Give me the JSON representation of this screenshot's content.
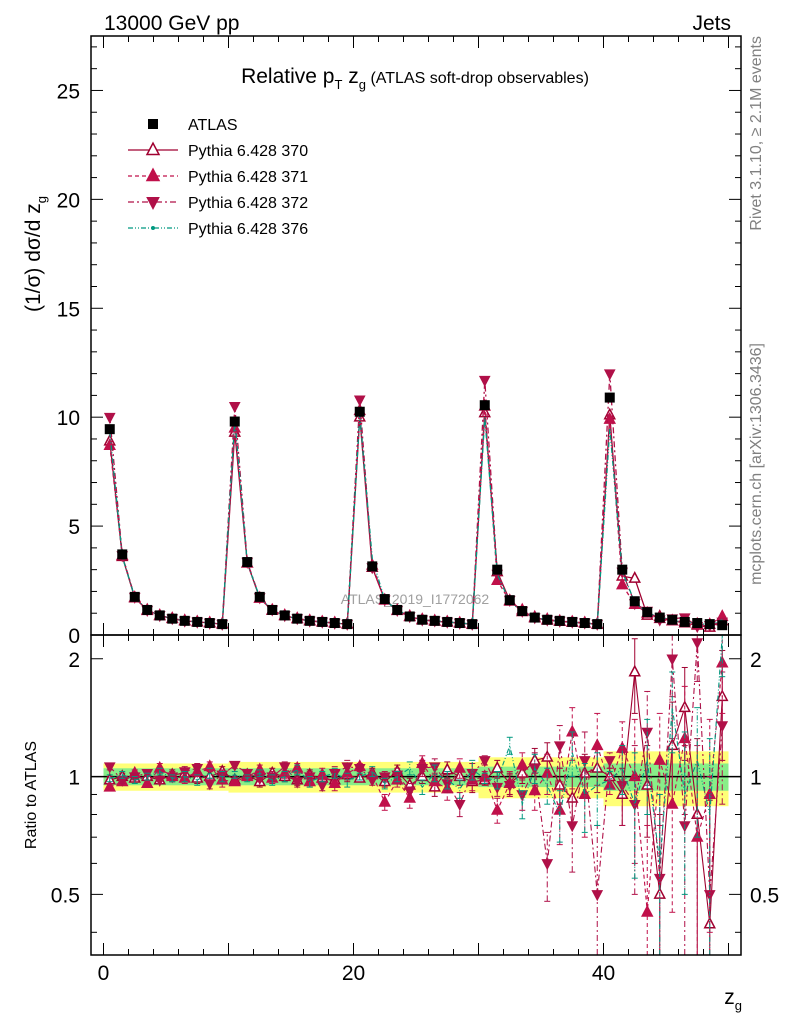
{
  "header": {
    "left": "13000 GeV pp",
    "right": "Jets"
  },
  "side_labels": {
    "rivet": "Rivet 3.1.10, ≥ 2.1M events",
    "mcplots": "mcplots.cern.ch [arXiv:1306.3436]"
  },
  "chart_data": {
    "type": "scatter",
    "title_parts": [
      "Relative p",
      "T",
      " z",
      "g",
      " (ATLAS soft-drop observables)"
    ],
    "watermark": "ATLAS_2019_I1772062",
    "xlabel": "z",
    "xlabel_sub": "g",
    "ylabel": "(1/σ) dσ/d z",
    "ylabel_sub": "g",
    "ratio_ylabel": "Ratio to ATLAS",
    "xlim": [
      -1,
      51
    ],
    "ylim": [
      0,
      27.5
    ],
    "ratio_ylim": [
      0.35,
      2.3
    ],
    "x_ticks": [
      0,
      20,
      40
    ],
    "y_ticks": [
      0,
      5,
      10,
      15,
      20,
      25
    ],
    "ratio_ticks": [
      0.5,
      1,
      2
    ],
    "legend_position": "top-left",
    "x": [
      0.5,
      1.5,
      2.5,
      3.5,
      4.5,
      5.5,
      6.5,
      7.5,
      8.5,
      9.5,
      10.5,
      11.5,
      12.5,
      13.5,
      14.5,
      15.5,
      16.5,
      17.5,
      18.5,
      19.5,
      20.5,
      21.5,
      22.5,
      23.5,
      24.5,
      25.5,
      26.5,
      27.5,
      28.5,
      29.5,
      30.5,
      31.5,
      32.5,
      33.5,
      34.5,
      35.5,
      36.5,
      37.5,
      38.5,
      39.5,
      40.5,
      41.5,
      42.5,
      43.5,
      44.5,
      45.5,
      46.5,
      47.5,
      48.5,
      49.5
    ],
    "reference": {
      "name": "ATLAS",
      "values": [
        9.45,
        3.7,
        1.75,
        1.15,
        0.9,
        0.75,
        0.65,
        0.6,
        0.55,
        0.5,
        9.8,
        3.35,
        1.75,
        1.15,
        0.9,
        0.75,
        0.65,
        0.6,
        0.55,
        0.5,
        10.25,
        3.15,
        1.65,
        1.15,
        0.85,
        0.7,
        0.65,
        0.6,
        0.55,
        0.5,
        10.55,
        3.0,
        1.6,
        1.1,
        0.8,
        0.7,
        0.65,
        0.6,
        0.55,
        0.5,
        10.9,
        3.0,
        1.55,
        1.05,
        0.8,
        0.7,
        0.6,
        0.55,
        0.5,
        0.45
      ],
      "band_inner": [
        0.05,
        0.05,
        0.05,
        0.05,
        0.05,
        0.05,
        0.05,
        0.05,
        0.05,
        0.05,
        0.05,
        0.05,
        0.05,
        0.05,
        0.05,
        0.05,
        0.05,
        0.05,
        0.05,
        0.05,
        0.05,
        0.05,
        0.05,
        0.05,
        0.05,
        0.05,
        0.05,
        0.05,
        0.05,
        0.05,
        0.06,
        0.06,
        0.06,
        0.06,
        0.06,
        0.06,
        0.06,
        0.06,
        0.06,
        0.06,
        0.08,
        0.08,
        0.08,
        0.08,
        0.08,
        0.08,
        0.08,
        0.08,
        0.08,
        0.08
      ],
      "band_outer": [
        0.08,
        0.08,
        0.08,
        0.08,
        0.08,
        0.08,
        0.08,
        0.08,
        0.08,
        0.08,
        0.09,
        0.09,
        0.09,
        0.09,
        0.09,
        0.09,
        0.09,
        0.09,
        0.09,
        0.09,
        0.09,
        0.09,
        0.09,
        0.09,
        0.09,
        0.09,
        0.09,
        0.09,
        0.09,
        0.09,
        0.12,
        0.12,
        0.12,
        0.12,
        0.12,
        0.12,
        0.12,
        0.12,
        0.12,
        0.12,
        0.16,
        0.16,
        0.16,
        0.16,
        0.16,
        0.16,
        0.16,
        0.16,
        0.16,
        0.16
      ]
    },
    "series": [
      {
        "name": "Pythia 6.428 370",
        "color": "#a00030",
        "marker": "triangle-up-open",
        "dash": "solid",
        "values": [
          8.9,
          3.6,
          1.7,
          1.15,
          0.88,
          0.75,
          0.64,
          0.6,
          0.55,
          0.5,
          9.3,
          3.3,
          1.68,
          1.13,
          0.88,
          0.74,
          0.64,
          0.59,
          0.54,
          0.5,
          10.0,
          3.1,
          1.6,
          1.12,
          0.84,
          0.69,
          0.63,
          0.59,
          0.54,
          0.49,
          10.2,
          2.9,
          1.58,
          1.07,
          0.78,
          0.68,
          0.62,
          0.58,
          0.54,
          0.49,
          10.1,
          2.7,
          2.6,
          0.9,
          0.85,
          0.65,
          0.55,
          0.45,
          0.35,
          0.65
        ],
        "ratio": [
          0.98,
          1.0,
          0.99,
          1.0,
          0.98,
          1.01,
          1.02,
          0.99,
          1.0,
          1.03,
          0.98,
          1.01,
          0.97,
          1.02,
          1.0,
          0.98,
          1.01,
          0.99,
          0.98,
          1.01,
          0.99,
          1.02,
          0.97,
          1.03,
          0.95,
          1.0,
          0.94,
          1.04,
          1.0,
          0.97,
          0.98,
          1.05,
          0.96,
          1.02,
          1.1,
          1.12,
          0.95,
          0.88,
          1.02,
          1.05,
          1.0,
          0.9,
          1.85,
          0.95,
          0.5,
          1.2,
          1.5,
          0.8,
          0.42,
          1.6
        ],
        "ratio_err": [
          0.02,
          0.02,
          0.02,
          0.02,
          0.02,
          0.03,
          0.03,
          0.03,
          0.03,
          0.03,
          0.02,
          0.02,
          0.03,
          0.03,
          0.03,
          0.03,
          0.03,
          0.03,
          0.04,
          0.04,
          0.02,
          0.03,
          0.03,
          0.04,
          0.04,
          0.04,
          0.05,
          0.05,
          0.05,
          0.06,
          0.03,
          0.05,
          0.06,
          0.06,
          0.08,
          0.1,
          0.1,
          0.12,
          0.12,
          0.14,
          0.05,
          0.15,
          0.4,
          0.25,
          0.3,
          0.35,
          0.4,
          0.45,
          0.45,
          0.5
        ]
      },
      {
        "name": "Pythia 6.428 371",
        "color": "#c0104a",
        "marker": "triangle-up-filled",
        "dash": "dash",
        "values": [
          8.7,
          3.65,
          1.72,
          1.12,
          0.9,
          0.76,
          0.66,
          0.6,
          0.56,
          0.51,
          9.5,
          3.3,
          1.7,
          1.14,
          0.9,
          0.76,
          0.66,
          0.6,
          0.56,
          0.51,
          10.3,
          3.2,
          1.6,
          1.13,
          0.86,
          0.71,
          0.65,
          0.6,
          0.55,
          0.5,
          10.5,
          2.5,
          1.55,
          1.15,
          0.82,
          0.72,
          0.64,
          0.6,
          0.56,
          0.5,
          9.9,
          2.3,
          1.4,
          1.0,
          0.75,
          0.65,
          0.62,
          0.5,
          0.48,
          0.85
        ],
        "ratio": [
          0.94,
          0.97,
          1.02,
          0.96,
          1.05,
          1.0,
          0.99,
          1.03,
          1.06,
          0.98,
          0.97,
          1.0,
          1.04,
          0.99,
          1.02,
          1.05,
          0.97,
          1.01,
          0.96,
          1.02,
          1.06,
          1.01,
          0.86,
          0.98,
          0.88,
          1.08,
          0.97,
          0.93,
          1.05,
          0.98,
          1.0,
          0.82,
          0.96,
          1.07,
          0.92,
          1.02,
          0.82,
          1.3,
          0.9,
          1.2,
          0.95,
          1.18,
          1.0,
          0.45,
          1.1,
          0.85,
          1.25,
          0.7,
          0.9,
          1.95
        ],
        "ratio_err": [
          0.02,
          0.02,
          0.02,
          0.02,
          0.03,
          0.03,
          0.03,
          0.03,
          0.03,
          0.04,
          0.02,
          0.02,
          0.03,
          0.03,
          0.03,
          0.03,
          0.03,
          0.04,
          0.04,
          0.04,
          0.02,
          0.03,
          0.04,
          0.04,
          0.05,
          0.05,
          0.05,
          0.06,
          0.06,
          0.06,
          0.03,
          0.06,
          0.07,
          0.08,
          0.1,
          0.12,
          0.15,
          0.2,
          0.2,
          0.25,
          0.05,
          0.2,
          0.4,
          0.3,
          0.35,
          0.4,
          0.45,
          0.5,
          0.5,
          0.5
        ]
      },
      {
        "name": "Pythia 6.428 372",
        "color": "#b01048",
        "marker": "triangle-down-filled",
        "dash": "dashdot",
        "values": [
          10.0,
          3.65,
          1.74,
          1.14,
          0.9,
          0.76,
          0.65,
          0.6,
          0.55,
          0.5,
          10.5,
          3.35,
          1.72,
          1.16,
          0.9,
          0.76,
          0.65,
          0.6,
          0.55,
          0.5,
          10.8,
          3.1,
          1.62,
          1.14,
          0.85,
          0.7,
          0.66,
          0.6,
          0.55,
          0.5,
          11.7,
          2.8,
          1.6,
          1.1,
          0.8,
          0.7,
          0.64,
          0.6,
          0.56,
          0.5,
          12.0,
          2.9,
          1.45,
          1.1,
          0.7,
          0.75,
          0.8,
          0.4,
          0.45,
          0.6
        ],
        "ratio": [
          1.06,
          0.98,
          1.0,
          1.02,
          0.98,
          1.0,
          1.03,
          1.05,
          0.96,
          1.01,
          1.07,
          1.02,
          0.99,
          1.0,
          1.06,
          0.97,
          1.0,
          0.95,
          1.02,
          1.06,
          1.05,
          0.98,
          1.0,
          1.01,
          0.92,
          1.05,
          1.06,
          0.96,
          0.85,
          1.02,
          1.1,
          0.94,
          0.95,
          0.9,
          1.05,
          0.6,
          1.2,
          0.75,
          1.1,
          0.5,
          1.1,
          0.95,
          0.85,
          1.3,
          0.55,
          2.0,
          0.75,
          2.2,
          0.5,
          1.35
        ],
        "ratio_err": [
          0.02,
          0.02,
          0.02,
          0.02,
          0.02,
          0.03,
          0.03,
          0.03,
          0.03,
          0.03,
          0.02,
          0.02,
          0.02,
          0.03,
          0.03,
          0.03,
          0.03,
          0.03,
          0.04,
          0.04,
          0.02,
          0.03,
          0.03,
          0.04,
          0.04,
          0.05,
          0.05,
          0.05,
          0.06,
          0.06,
          0.03,
          0.05,
          0.06,
          0.08,
          0.1,
          0.12,
          0.15,
          0.18,
          0.2,
          0.25,
          0.05,
          0.2,
          0.35,
          0.35,
          0.35,
          0.4,
          0.45,
          0.45,
          0.5,
          0.5
        ]
      },
      {
        "name": "Pythia 6.428 376",
        "color": "#009980",
        "marker": "dot",
        "dash": "dashdotdot",
        "values": [
          9.3,
          3.6,
          1.73,
          1.15,
          0.9,
          0.75,
          0.65,
          0.6,
          0.55,
          0.5,
          9.9,
          3.3,
          1.72,
          1.15,
          0.89,
          0.75,
          0.65,
          0.6,
          0.55,
          0.5,
          10.1,
          3.5,
          1.6,
          1.15,
          0.85,
          0.7,
          0.65,
          0.6,
          0.55,
          0.5,
          10.0,
          2.8,
          1.5,
          1.1,
          0.8,
          0.7,
          0.62,
          0.58,
          0.54,
          0.49,
          9.5,
          2.9,
          1.5,
          1.0,
          0.85,
          0.65,
          0.6,
          0.55,
          0.45,
          0.7
        ],
        "ratio": [
          0.99,
          1.01,
          0.98,
          1.0,
          1.03,
          0.99,
          1.0,
          0.98,
          1.02,
          1.0,
          1.01,
          0.99,
          1.02,
          0.98,
          1.0,
          1.04,
          0.97,
          1.0,
          1.02,
          0.98,
          1.0,
          1.03,
          0.96,
          1.0,
          1.05,
          0.94,
          1.02,
          0.98,
          0.93,
          1.04,
          0.99,
          0.98,
          1.2,
          0.85,
          1.05,
          0.95,
          0.8,
          1.15,
          0.9,
          0.95,
          0.98,
          1.05,
          0.85,
          1.1,
          0.6,
          1.5,
          0.9,
          1.1,
          0.8,
          2.3
        ],
        "ratio_err": [
          0.02,
          0.02,
          0.02,
          0.02,
          0.02,
          0.02,
          0.03,
          0.03,
          0.03,
          0.03,
          0.02,
          0.02,
          0.02,
          0.03,
          0.03,
          0.03,
          0.03,
          0.03,
          0.03,
          0.04,
          0.02,
          0.03,
          0.03,
          0.03,
          0.04,
          0.04,
          0.05,
          0.05,
          0.05,
          0.06,
          0.03,
          0.05,
          0.06,
          0.07,
          0.09,
          0.1,
          0.12,
          0.15,
          0.18,
          0.2,
          0.05,
          0.15,
          0.3,
          0.3,
          0.3,
          0.35,
          0.4,
          0.4,
          0.45,
          0.5
        ]
      }
    ]
  }
}
